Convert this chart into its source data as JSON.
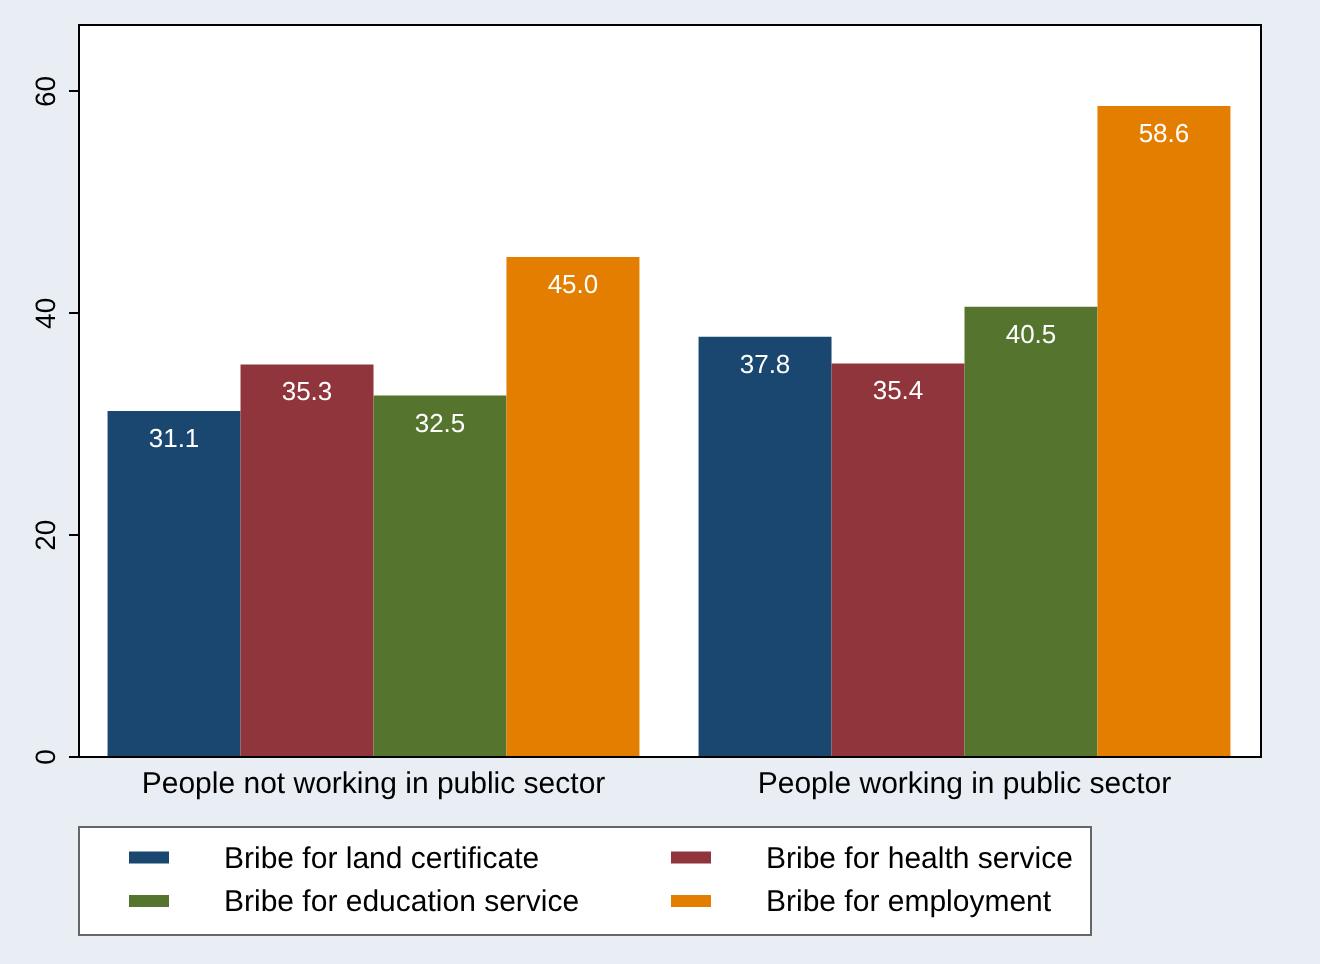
{
  "chart_data": {
    "type": "bar",
    "categories": [
      "People not working in public sector",
      "People working in public sector"
    ],
    "series": [
      {
        "name": "Bribe for land certificate",
        "color": "#1a476f",
        "values": [
          31.1,
          37.8
        ]
      },
      {
        "name": "Bribe for health service",
        "color": "#90353b",
        "values": [
          35.3,
          35.4
        ]
      },
      {
        "name": "Bribe for education service",
        "color": "#55752f",
        "values": [
          32.5,
          40.5
        ]
      },
      {
        "name": "Bribe for employment",
        "color": "#e37e00",
        "values": [
          45.0,
          58.6
        ]
      }
    ],
    "value_labels": [
      [
        "31.1",
        "37.8"
      ],
      [
        "35.3",
        "35.4"
      ],
      [
        "32.5",
        "40.5"
      ],
      [
        "45.0",
        "58.6"
      ]
    ],
    "ylim": [
      0,
      66
    ],
    "yticks": [
      0,
      20,
      40,
      60
    ],
    "legend": "bottom",
    "grid": false
  }
}
